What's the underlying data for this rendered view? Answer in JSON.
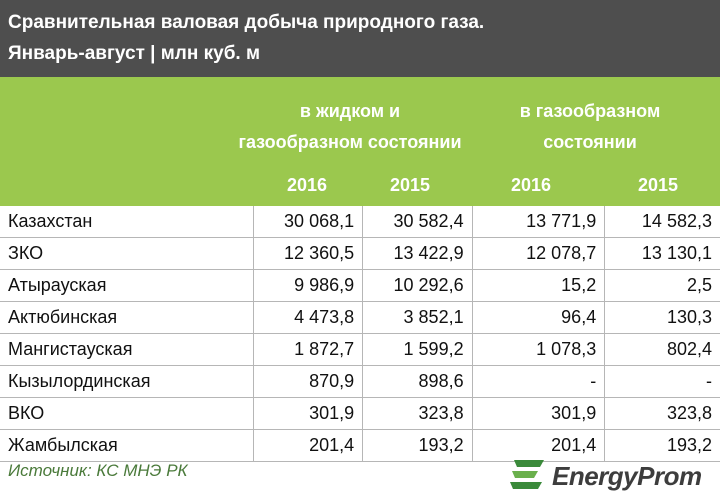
{
  "title": {
    "line1": "Сравнительная валовая добыча природного газа.",
    "line2": "Январь-август | млн куб. м"
  },
  "header": {
    "group1_line1": "в жидком и",
    "group1_line2": "газообразном состоянии",
    "group2_line1": "в газообразном",
    "group2_line2": "состоянии",
    "years": [
      "2016",
      "2015",
      "2016",
      "2015"
    ]
  },
  "rows": [
    {
      "region": "Казахстан",
      "v": [
        "30 068,1",
        "30 582,4",
        "13 771,9",
        "14 582,3"
      ]
    },
    {
      "region": "ЗКО",
      "v": [
        "12 360,5",
        "13 422,9",
        "12 078,7",
        "13 130,1"
      ]
    },
    {
      "region": "Атырауская",
      "v": [
        "9 986,9",
        "10 292,6",
        "15,2",
        "2,5"
      ]
    },
    {
      "region": "Актюбинская",
      "v": [
        "4 473,8",
        "3 852,1",
        "96,4",
        "130,3"
      ]
    },
    {
      "region": "Мангистауская",
      "v": [
        "1 872,7",
        "1 599,2",
        "1 078,3",
        "802,4"
      ]
    },
    {
      "region": "Кызылординская",
      "v": [
        "870,9",
        "898,6",
        "-",
        "-"
      ]
    },
    {
      "region": "ВКО",
      "v": [
        "301,9",
        "323,8",
        "301,9",
        "323,8"
      ]
    },
    {
      "region": "Жамбылская",
      "v": [
        "201,4",
        "193,2",
        "201,4",
        "193,2"
      ]
    }
  ],
  "source": "Источник: КС МНЭ РК",
  "logo": {
    "text": "EnergyProm",
    "icon": "energyprom-logo-icon"
  },
  "colors": {
    "title_bg": "#4e4e4e",
    "header_bg": "#9bc84e",
    "source_text": "#4a7a3a"
  }
}
